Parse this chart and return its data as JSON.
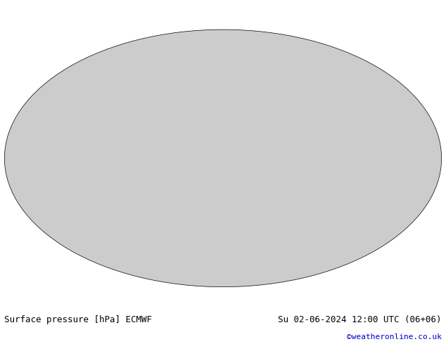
{
  "title_left": "Surface pressure [hPa] ECMWF",
  "title_right": "Su 02-06-2024 12:00 UTC (06+06)",
  "credit": "©weatheronline.co.uk",
  "title_color_left": "#000000",
  "title_color_right": "#000000",
  "credit_color": "#0000cc",
  "background_color": "#ffffff",
  "map_bg_color": "#cccccc",
  "land_color": "#90c070",
  "ocean_color": "#aaaaaa",
  "contour_interval": 4,
  "pressure_min": 940,
  "pressure_max": 1048,
  "reference_pressure": 1013,
  "contour_color_low": "#0000ff",
  "contour_color_high": "#ff0000",
  "contour_color_ref": "#000000",
  "label_fontsize": 6,
  "title_fontsize": 9,
  "credit_fontsize": 8,
  "fig_width": 6.34,
  "fig_height": 4.9,
  "dpi": 100
}
